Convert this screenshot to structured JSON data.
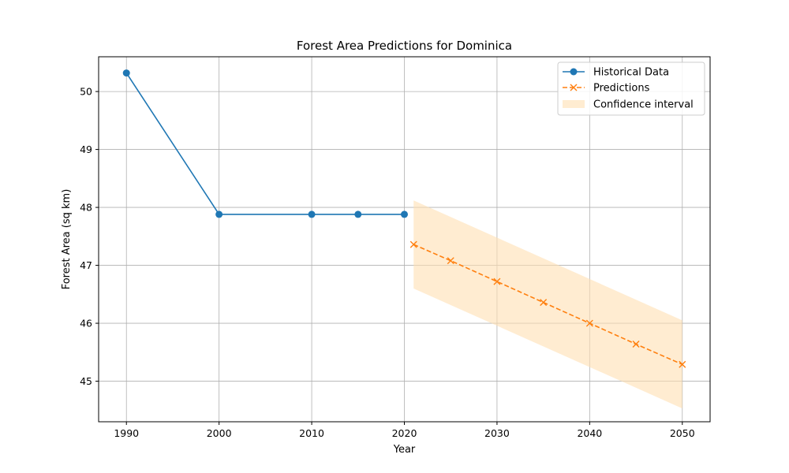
{
  "chart_data": {
    "type": "line",
    "title": "Forest Area Predictions for Dominica",
    "xlabel": "Year",
    "ylabel": "Forest Area (sq km)",
    "xlim": [
      1987,
      2053
    ],
    "ylim": [
      44.3,
      50.6
    ],
    "x_ticks": [
      1990,
      2000,
      2010,
      2020,
      2030,
      2040,
      2050
    ],
    "y_ticks": [
      45,
      46,
      47,
      48,
      49,
      50
    ],
    "grid": true,
    "legend_position": "top-right",
    "series": [
      {
        "name": "Historical Data",
        "style": "solid",
        "marker": "circle",
        "color": "#1f77b4",
        "x": [
          1990,
          2000,
          2010,
          2015,
          2020
        ],
        "y": [
          50.32,
          47.88,
          47.88,
          47.88,
          47.88
        ]
      },
      {
        "name": "Predictions",
        "style": "dashed",
        "marker": "x",
        "color": "#ff7f0e",
        "x": [
          2021,
          2025,
          2030,
          2035,
          2040,
          2045,
          2050
        ],
        "y": [
          47.36,
          47.08,
          46.72,
          46.36,
          46.0,
          45.64,
          45.29
        ]
      }
    ],
    "confidence_interval": {
      "name": "Confidence interval",
      "color": "#ffe0b2",
      "x": [
        2021,
        2050
      ],
      "lower": [
        46.6,
        44.53
      ],
      "upper": [
        48.12,
        46.05
      ]
    }
  }
}
